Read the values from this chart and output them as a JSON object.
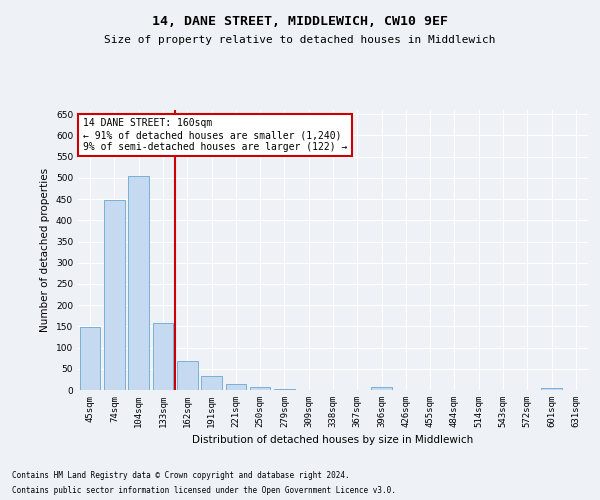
{
  "title": "14, DANE STREET, MIDDLEWICH, CW10 9EF",
  "subtitle": "Size of property relative to detached houses in Middlewich",
  "xlabel": "Distribution of detached houses by size in Middlewich",
  "ylabel": "Number of detached properties",
  "footnote1": "Contains HM Land Registry data © Crown copyright and database right 2024.",
  "footnote2": "Contains public sector information licensed under the Open Government Licence v3.0.",
  "categories": [
    "45sqm",
    "74sqm",
    "104sqm",
    "133sqm",
    "162sqm",
    "191sqm",
    "221sqm",
    "250sqm",
    "279sqm",
    "309sqm",
    "338sqm",
    "367sqm",
    "396sqm",
    "426sqm",
    "455sqm",
    "484sqm",
    "514sqm",
    "543sqm",
    "572sqm",
    "601sqm",
    "631sqm"
  ],
  "values": [
    148,
    448,
    505,
    158,
    68,
    32,
    13,
    7,
    3,
    0,
    0,
    0,
    6,
    0,
    0,
    0,
    0,
    0,
    0,
    5,
    0
  ],
  "bar_color": "#c5d9f0",
  "bar_edge_color": "#7aafd4",
  "vline_color": "#cc0000",
  "annotation_text": "14 DANE STREET: 160sqm\n← 91% of detached houses are smaller (1,240)\n9% of semi-detached houses are larger (122) →",
  "annotation_box_color": "#ffffff",
  "annotation_box_edge_color": "#cc0000",
  "ylim": [
    0,
    660
  ],
  "yticks": [
    0,
    50,
    100,
    150,
    200,
    250,
    300,
    350,
    400,
    450,
    500,
    550,
    600,
    650
  ],
  "background_color": "#eef2f7",
  "plot_bg_color": "#eef2f7",
  "grid_color": "#ffffff",
  "title_fontsize": 9.5,
  "subtitle_fontsize": 8,
  "tick_fontsize": 6.5,
  "ylabel_fontsize": 7.5,
  "xlabel_fontsize": 7.5,
  "annotation_fontsize": 7,
  "footnote_fontsize": 5.5
}
